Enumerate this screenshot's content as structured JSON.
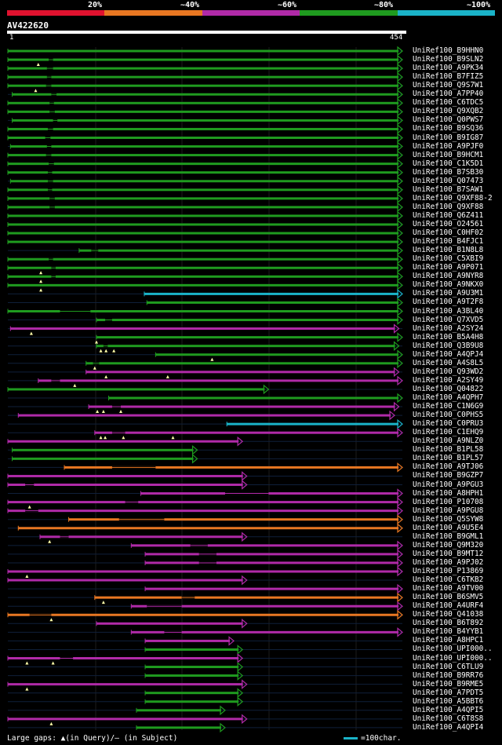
{
  "legend": {
    "labels": [
      "20%",
      "~40%",
      "~60%",
      "~80%",
      "~100%"
    ],
    "colors": [
      "#e0122f",
      "#e87722",
      "#b02aa8",
      "#1f9b1f",
      "#1ab3c8"
    ]
  },
  "query": {
    "id": "AV422620",
    "start": "1",
    "end": "454",
    "length": 454
  },
  "hits": [
    {
      "id": "UniRef100_B9HHN0",
      "s": 0,
      "e": 454,
      "c": "green",
      "a": "right",
      "g": [],
      "m": []
    },
    {
      "id": "UniRef100_B9SLN2",
      "s": 0,
      "e": 454,
      "c": "green",
      "a": "right",
      "g": [
        [
          47,
          52
        ]
      ],
      "m": [
        35
      ]
    },
    {
      "id": "UniRef100_A9PK34",
      "s": 0,
      "e": 454,
      "c": "green",
      "a": "right",
      "g": [
        [
          45,
          52
        ]
      ],
      "m": []
    },
    {
      "id": "UniRef100_B7FIZ5",
      "s": 0,
      "e": 454,
      "c": "green",
      "a": "right",
      "g": [
        [
          45,
          50
        ]
      ],
      "m": []
    },
    {
      "id": "UniRef100_Q9S7W1",
      "s": 0,
      "e": 454,
      "c": "green",
      "a": "right",
      "g": [
        [
          44,
          50
        ]
      ],
      "m": [
        32
      ]
    },
    {
      "id": "UniRef100_A7PP40",
      "s": 5,
      "e": 454,
      "c": "green",
      "a": "right",
      "g": [
        [
          50,
          56
        ]
      ],
      "m": []
    },
    {
      "id": "UniRef100_C6TDC5",
      "s": 0,
      "e": 454,
      "c": "green",
      "a": "right",
      "g": [
        [
          48,
          53
        ]
      ],
      "m": []
    },
    {
      "id": "UniRef100_Q9XQB2",
      "s": 0,
      "e": 454,
      "c": "green",
      "a": "right",
      "g": [
        [
          48,
          54
        ]
      ],
      "m": []
    },
    {
      "id": "UniRef100_Q0PWS7",
      "s": 5,
      "e": 454,
      "c": "green",
      "a": "right",
      "g": [
        [
          52,
          57
        ]
      ],
      "m": []
    },
    {
      "id": "UniRef100_B9SQ36",
      "s": 0,
      "e": 454,
      "c": "green",
      "a": "right",
      "g": [
        [
          46,
          52
        ]
      ],
      "m": []
    },
    {
      "id": "UniRef100_B9IG87",
      "s": 0,
      "e": 454,
      "c": "green",
      "a": "right",
      "g": [
        [
          43,
          49
        ]
      ],
      "m": []
    },
    {
      "id": "UniRef100_A9PJF0",
      "s": 3,
      "e": 454,
      "c": "green",
      "a": "right",
      "g": [
        [
          45,
          50
        ]
      ],
      "m": []
    },
    {
      "id": "UniRef100_B9HCM1",
      "s": 0,
      "e": 454,
      "c": "green",
      "a": "right",
      "g": [
        [
          44,
          50
        ]
      ],
      "m": []
    },
    {
      "id": "UniRef100_C1K5D1",
      "s": 0,
      "e": 454,
      "c": "green",
      "a": "right",
      "g": [
        [
          47,
          53
        ]
      ],
      "m": []
    },
    {
      "id": "UniRef100_B7SB30",
      "s": 0,
      "e": 454,
      "c": "green",
      "a": "right",
      "g": [
        [
          46,
          51
        ]
      ],
      "m": []
    },
    {
      "id": "UniRef100_Q07473",
      "s": 3,
      "e": 454,
      "c": "green",
      "a": "right",
      "g": [
        [
          46,
          52
        ]
      ],
      "m": []
    },
    {
      "id": "UniRef100_B7SAW1",
      "s": 0,
      "e": 454,
      "c": "green",
      "a": "right",
      "g": [
        [
          46,
          51
        ]
      ],
      "m": []
    },
    {
      "id": "UniRef100_Q9XF88-2",
      "s": 0,
      "e": 454,
      "c": "green",
      "a": "right",
      "g": [
        [
          48,
          54
        ]
      ],
      "m": []
    },
    {
      "id": "UniRef100_Q9XF88",
      "s": 0,
      "e": 454,
      "c": "green",
      "a": "right",
      "g": [
        [
          48,
          54
        ]
      ],
      "m": []
    },
    {
      "id": "UniRef100_Q6Z411",
      "s": 0,
      "e": 454,
      "c": "green",
      "a": "right",
      "g": [],
      "m": []
    },
    {
      "id": "UniRef100_O24561",
      "s": 0,
      "e": 454,
      "c": "green",
      "a": "right",
      "g": [],
      "m": []
    },
    {
      "id": "UniRef100_C0HF02",
      "s": 0,
      "e": 454,
      "c": "green",
      "a": "right",
      "g": [],
      "m": []
    },
    {
      "id": "UniRef100_B4FJC1",
      "s": 0,
      "e": 454,
      "c": "green",
      "a": "right",
      "g": [],
      "m": []
    },
    {
      "id": "UniRef100_B1N8L8",
      "s": 82,
      "e": 454,
      "c": "green",
      "a": "right",
      "g": [
        [
          96,
          104
        ]
      ],
      "m": []
    },
    {
      "id": "UniRef100_C5XBI9",
      "s": 0,
      "e": 454,
      "c": "green",
      "a": "right",
      "g": [
        [
          47,
          52
        ]
      ],
      "m": []
    },
    {
      "id": "UniRef100_A9P071",
      "s": 0,
      "e": 454,
      "c": "green",
      "a": "right",
      "g": [
        [
          50,
          55
        ]
      ],
      "m": [
        38
      ]
    },
    {
      "id": "UniRef100_A9NYR8",
      "s": 0,
      "e": 454,
      "c": "green",
      "a": "right",
      "g": [
        [
          50,
          55
        ]
      ],
      "m": [
        38
      ]
    },
    {
      "id": "UniRef100_A9NKX0",
      "s": 0,
      "e": 454,
      "c": "green",
      "a": "right",
      "g": [],
      "m": [
        38
      ]
    },
    {
      "id": "UniRef100_A9U3M1",
      "s": 157,
      "e": 454,
      "c": "cyan",
      "a": "right",
      "g": [],
      "m": []
    },
    {
      "id": "UniRef100_A9T2F8",
      "s": 160,
      "e": 454,
      "c": "green",
      "a": "right",
      "g": [],
      "m": []
    },
    {
      "id": "UniRef100_A3BL40",
      "s": 0,
      "e": 454,
      "c": "green",
      "a": "right",
      "g": [
        [
          60,
          95
        ]
      ],
      "m": []
    },
    {
      "id": "UniRef100_Q7XVD5",
      "s": 102,
      "e": 454,
      "c": "green",
      "a": "right",
      "g": [
        [
          112,
          120
        ]
      ],
      "m": []
    },
    {
      "id": "UniRef100_A2SY24",
      "s": 3,
      "e": 450,
      "c": "purple",
      "a": "right",
      "g": [],
      "m": [
        27
      ]
    },
    {
      "id": "UniRef100_B5A4H8",
      "s": 102,
      "e": 454,
      "c": "green",
      "a": "right",
      "g": [],
      "m": [
        102
      ]
    },
    {
      "id": "UniRef100_Q3B9U8",
      "s": 102,
      "e": 450,
      "c": "green",
      "a": "right",
      "g": [
        [
          110,
          115
        ]
      ],
      "m": [
        107,
        113,
        122
      ]
    },
    {
      "id": "UniRef100_A4QPJ4",
      "s": 170,
      "e": 454,
      "c": "green",
      "a": "right",
      "g": [],
      "m": [
        235
      ]
    },
    {
      "id": "UniRef100_A4S8L5",
      "s": 90,
      "e": 454,
      "c": "green",
      "a": "right",
      "g": [
        [
          98,
          105
        ]
      ],
      "m": [
        100
      ]
    },
    {
      "id": "UniRef100_Q93WD2",
      "s": 90,
      "e": 450,
      "c": "purple",
      "a": "right",
      "g": [],
      "m": [
        113,
        184
      ]
    },
    {
      "id": "UniRef100_A2SY49",
      "s": 35,
      "e": 454,
      "c": "purple",
      "a": "right",
      "g": [
        [
          50,
          60
        ]
      ],
      "m": [
        77
      ]
    },
    {
      "id": "UniRef100_Q04822",
      "s": 0,
      "e": 300,
      "c": "green",
      "a": "right",
      "g": [],
      "m": []
    },
    {
      "id": "UniRef100_A4QPH7",
      "s": 116,
      "e": 454,
      "c": "green",
      "a": "right",
      "g": [],
      "m": []
    },
    {
      "id": "UniRef100_C1N6G9",
      "s": 93,
      "e": 450,
      "c": "purple",
      "a": "right",
      "g": [
        [
          120,
          130
        ]
      ],
      "m": [
        103,
        110,
        130
      ]
    },
    {
      "id": "UniRef100_C0PHS5",
      "s": 12,
      "e": 445,
      "c": "purple",
      "a": "right",
      "g": [],
      "m": []
    },
    {
      "id": "UniRef100_C0PRU3",
      "s": 252,
      "e": 454,
      "c": "cyan",
      "a": "right",
      "g": [],
      "m": []
    },
    {
      "id": "UniRef100_C1EHQ9",
      "s": 100,
      "e": 454,
      "c": "purple",
      "a": "right",
      "g": [
        [
          120,
          135
        ]
      ],
      "m": [
        107,
        112,
        133,
        190
      ]
    },
    {
      "id": "UniRef100_A9NLZ0",
      "s": 0,
      "e": 270,
      "c": "purple",
      "a": "right",
      "g": [],
      "m": []
    },
    {
      "id": "UniRef100_B1PL58",
      "s": 5,
      "e": 218,
      "c": "green",
      "a": "right",
      "g": [],
      "m": []
    },
    {
      "id": "UniRef100_B1PL57",
      "s": 5,
      "e": 218,
      "c": "green",
      "a": "right",
      "g": [],
      "m": []
    },
    {
      "id": "UniRef100_A9TJ06",
      "s": 65,
      "e": 454,
      "c": "orange",
      "a": "right",
      "g": [
        [
          120,
          170
        ]
      ],
      "m": []
    },
    {
      "id": "UniRef100_B9GZP7",
      "s": 0,
      "e": 275,
      "c": "purple",
      "a": "right",
      "g": [],
      "m": []
    },
    {
      "id": "UniRef100_A9PGU3",
      "s": 0,
      "e": 275,
      "c": "purple",
      "a": "right",
      "g": [
        [
          20,
          30
        ]
      ],
      "m": []
    },
    {
      "id": "UniRef100_A8HPH1",
      "s": 153,
      "e": 454,
      "c": "purple",
      "a": "right",
      "g": [
        [
          250,
          300
        ]
      ],
      "m": []
    },
    {
      "id": "UniRef100_P10708",
      "s": 0,
      "e": 454,
      "c": "purple",
      "a": "right",
      "g": [
        [
          135,
          150
        ]
      ],
      "m": [
        25
      ]
    },
    {
      "id": "UniRef100_A9PGU8",
      "s": 0,
      "e": 454,
      "c": "purple",
      "a": "right",
      "g": [
        [
          20,
          35
        ]
      ],
      "m": []
    },
    {
      "id": "UniRef100_Q5SYW8",
      "s": 70,
      "e": 454,
      "c": "orange",
      "a": "right",
      "g": [
        [
          128,
          180
        ]
      ],
      "m": []
    },
    {
      "id": "UniRef100_A9U5E4",
      "s": 12,
      "e": 454,
      "c": "orange",
      "a": "right",
      "g": [],
      "m": []
    },
    {
      "id": "UniRef100_B9GML1",
      "s": 37,
      "e": 275,
      "c": "purple",
      "a": "right",
      "g": [
        [
          60,
          70
        ]
      ],
      "m": [
        48
      ]
    },
    {
      "id": "UniRef100_Q9M320",
      "s": 142,
      "e": 454,
      "c": "purple",
      "a": "right",
      "g": [
        [
          210,
          230
        ]
      ],
      "m": []
    },
    {
      "id": "UniRef100_B9MT12",
      "s": 158,
      "e": 454,
      "c": "purple",
      "a": "right",
      "g": [
        [
          220,
          240
        ]
      ],
      "m": []
    },
    {
      "id": "UniRef100_A9PJ02",
      "s": 158,
      "e": 454,
      "c": "purple",
      "a": "right",
      "g": [
        [
          220,
          240
        ]
      ],
      "m": []
    },
    {
      "id": "UniRef100_P13869",
      "s": 0,
      "e": 454,
      "c": "purple",
      "a": "right",
      "g": [],
      "m": [
        22
      ]
    },
    {
      "id": "UniRef100_C6TKB2",
      "s": 0,
      "e": 275,
      "c": "purple",
      "a": "right",
      "g": [],
      "m": []
    },
    {
      "id": "UniRef100_A9TV00",
      "s": 158,
      "e": 454,
      "c": "purple",
      "a": "right",
      "g": [],
      "m": []
    },
    {
      "id": "UniRef100_B6SMV5",
      "s": 100,
      "e": 454,
      "c": "orange",
      "a": "right",
      "g": [
        [
          200,
          215
        ]
      ],
      "m": [
        110
      ]
    },
    {
      "id": "UniRef100_A4URF4",
      "s": 142,
      "e": 454,
      "c": "purple",
      "a": "right",
      "g": [
        [
          160,
          200
        ]
      ],
      "m": []
    },
    {
      "id": "UniRef100_Q41038",
      "s": 0,
      "e": 454,
      "c": "orange",
      "a": "right",
      "g": [
        [
          25,
          50
        ]
      ],
      "m": [
        50
      ]
    },
    {
      "id": "UniRef100_B6T892",
      "s": 102,
      "e": 275,
      "c": "purple",
      "a": "right",
      "g": [],
      "m": []
    },
    {
      "id": "UniRef100_B4YYB1",
      "s": 142,
      "e": 454,
      "c": "purple",
      "a": "right",
      "g": [
        [
          180,
          200
        ]
      ],
      "m": []
    },
    {
      "id": "UniRef100_A8HPC1",
      "s": 158,
      "e": 260,
      "c": "purple",
      "a": "right",
      "g": [],
      "m": []
    },
    {
      "id": "UniRef100_UPI000..",
      "s": 158,
      "e": 270,
      "c": "green",
      "a": "right",
      "g": [],
      "m": []
    },
    {
      "id": "UniRef100_UPI000..",
      "s": 0,
      "e": 270,
      "c": "purple",
      "a": "right",
      "g": [
        [
          60,
          75
        ]
      ],
      "m": [
        22,
        52
      ]
    },
    {
      "id": "UniRef100_C6TLU9",
      "s": 158,
      "e": 270,
      "c": "green",
      "a": "right",
      "g": [],
      "m": []
    },
    {
      "id": "UniRef100_B9RR76",
      "s": 158,
      "e": 270,
      "c": "green",
      "a": "right",
      "g": [],
      "m": []
    },
    {
      "id": "UniRef100_B9RME5",
      "s": 0,
      "e": 275,
      "c": "purple",
      "a": "right",
      "g": [],
      "m": [
        22
      ]
    },
    {
      "id": "UniRef100_A7PDT5",
      "s": 158,
      "e": 270,
      "c": "green",
      "a": "right",
      "g": [],
      "m": []
    },
    {
      "id": "UniRef100_A5BBT6",
      "s": 158,
      "e": 270,
      "c": "green",
      "a": "right",
      "g": [],
      "m": []
    },
    {
      "id": "UniRef100_A4QPI5",
      "s": 148,
      "e": 250,
      "c": "green",
      "a": "right",
      "g": [],
      "m": []
    },
    {
      "id": "UniRef100_C6T8S8",
      "s": 0,
      "e": 275,
      "c": "purple",
      "a": "right",
      "g": [],
      "m": [
        50
      ]
    },
    {
      "id": "UniRef100_A4QPI4",
      "s": 148,
      "e": 250,
      "c": "green",
      "a": "right",
      "g": [],
      "m": []
    }
  ],
  "footer": {
    "note": "Large gaps: ▲(in Query)/– (in Subject)",
    "scale": "=100char."
  }
}
